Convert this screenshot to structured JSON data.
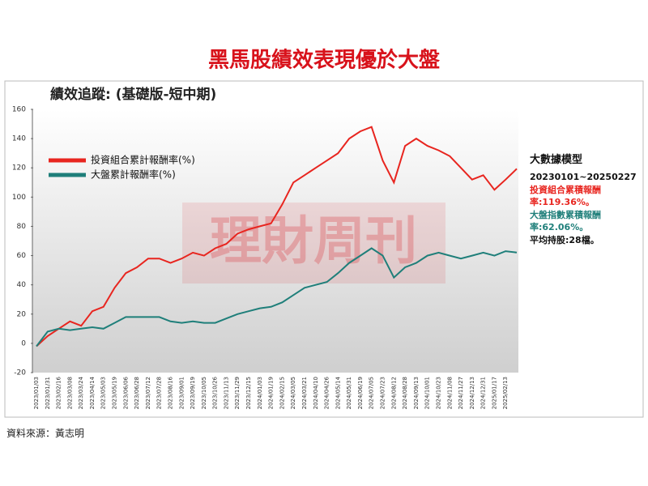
{
  "chart_data": {
    "type": "line",
    "title": "黑馬股績效表現優於大盤",
    "subtitle": "績效追蹤: (基礎版-短中期)",
    "watermark": "理財周刊",
    "categories": [
      "2023/01/03",
      "2023/01/31",
      "2023/02/16",
      "2023/03/08",
      "2023/03/24",
      "2023/04/14",
      "2023/05/03",
      "2023/05/19",
      "2023/06/06",
      "2023/06/28",
      "2023/07/12",
      "2023/07/28",
      "2023/08/16",
      "2023/09/01",
      "2023/09/19",
      "2023/10/05",
      "2023/10/26",
      "2023/11/13",
      "2023/11/29",
      "2023/12/15",
      "2024/01/03",
      "2024/01/19",
      "2024/02/15",
      "2024/03/05",
      "2024/03/21",
      "2024/04/10",
      "2024/04/26",
      "2024/05/14",
      "2024/05/31",
      "2024/06/19",
      "2024/07/05",
      "2024/07/23",
      "2024/08/12",
      "2024/08/28",
      "2024/09/13",
      "2024/10/01",
      "2024/10/23",
      "2024/11/08",
      "2024/11/27",
      "2024/12/13",
      "2024/12/31",
      "2025/01/17",
      "2025/02/13",
      null
    ],
    "series": [
      {
        "name": "投資組合累計報酬率(%)",
        "color": "#e8251f",
        "values": [
          -2,
          5,
          10,
          15,
          12,
          22,
          25,
          38,
          48,
          52,
          58,
          58,
          55,
          58,
          62,
          60,
          65,
          68,
          75,
          78,
          80,
          82,
          95,
          110,
          115,
          120,
          125,
          130,
          140,
          145,
          148,
          125,
          110,
          135,
          140,
          135,
          132,
          128,
          120,
          112,
          115,
          105,
          112,
          119.36
        ]
      },
      {
        "name": "大盤累計報酬率(%)",
        "color": "#1f7f7a",
        "values": [
          -2,
          8,
          10,
          9,
          10,
          11,
          10,
          14,
          18,
          18,
          18,
          18,
          15,
          14,
          15,
          14,
          14,
          17,
          20,
          22,
          24,
          25,
          28,
          33,
          38,
          40,
          42,
          48,
          55,
          60,
          65,
          60,
          45,
          52,
          55,
          60,
          62,
          60,
          58,
          60,
          62,
          60,
          63,
          62.06
        ]
      }
    ],
    "ylim": [
      -20,
      160
    ],
    "yticks": [
      -20,
      0,
      20,
      40,
      60,
      80,
      100,
      120,
      140,
      160
    ],
    "grid": false,
    "legend": "upper-left",
    "panel": [
      "大數據模型",
      "20230101~20250227",
      "投資組合累積報酬率:119.36%。",
      "大盤指數累積報酬率:62.06%。",
      "平均持股:28檔。"
    ],
    "source": "資料來源：黃志明"
  }
}
